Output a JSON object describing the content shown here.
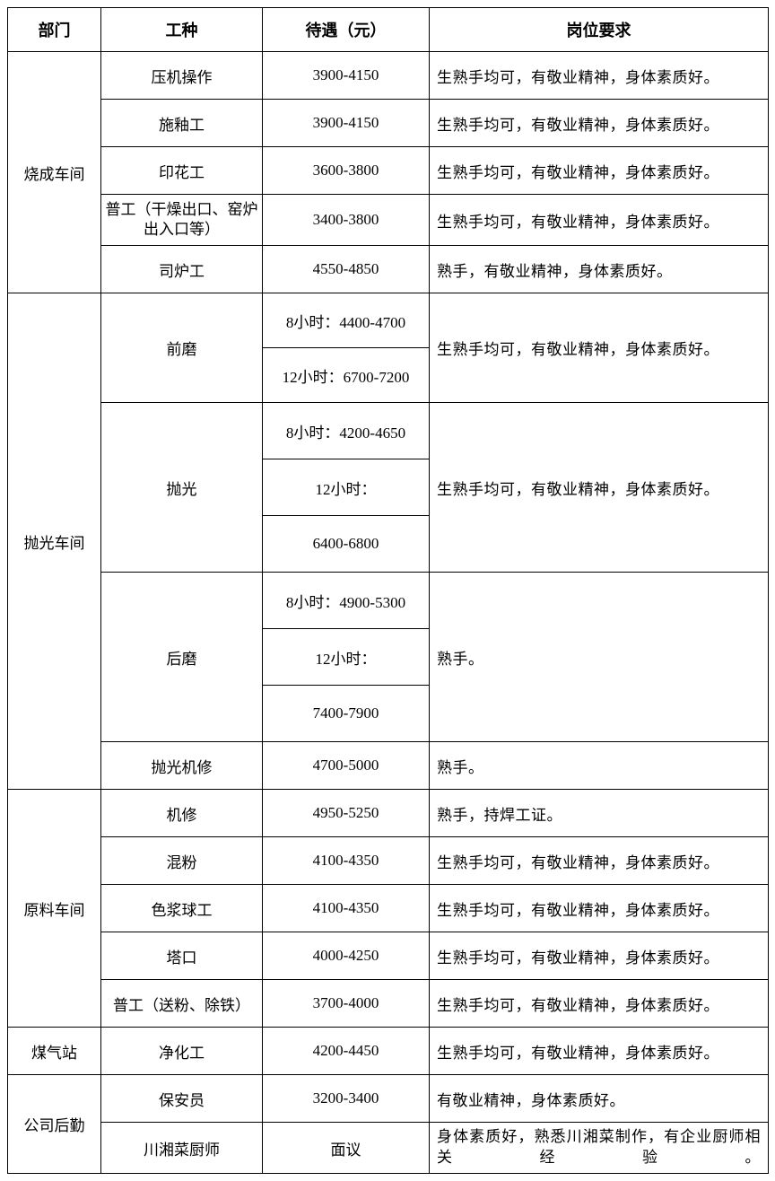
{
  "headers": {
    "dept": "部门",
    "job": "工种",
    "pay": "待遇（元）",
    "req": "岗位要求"
  },
  "req_common": "生熟手均可，有敬业精神，身体素质好。",
  "req_skilled": "熟手，有敬业精神，身体素质好。",
  "req_skilled_only": "熟手。",
  "req_weld": "熟手，持焊工证。",
  "req_guard": "有敬业精神，身体素质好。",
  "req_chef": "身体素质好，熟悉川湘菜制作，有企业厨师相关经验。",
  "depts": {
    "firing": "烧成车间",
    "polish": "抛光车间",
    "raw": "原料车间",
    "gas": "煤气站",
    "logi": "公司后勤"
  },
  "firing": {
    "r1_job": "压机操作",
    "r1_pay": "3900-4150",
    "r2_job": "施釉工",
    "r2_pay": "3900-4150",
    "r3_job": "印花工",
    "r3_pay": "3600-3800",
    "r4_job_l1": "普工（干燥出口、窑炉",
    "r4_job_l2": "出入口等）",
    "r4_pay": "3400-3800",
    "r5_job": "司炉工",
    "r5_pay": "4550-4850"
  },
  "polish": {
    "r1_job": "前磨",
    "r1_pay_a": "8小时：4400-4700",
    "r1_pay_b": "12小时：6700-7200",
    "r2_job": "抛光",
    "r2_pay_a": "8小时：4200-4650",
    "r2_pay_b": "12小时：",
    "r2_pay_c": "6400-6800",
    "r3_job": "后磨",
    "r3_pay_a": "8小时：4900-5300",
    "r3_pay_b": "12小时：",
    "r3_pay_c": "7400-7900",
    "r4_job": "抛光机修",
    "r4_pay": "4700-5000"
  },
  "raw": {
    "r1_job": "机修",
    "r1_pay": "4950-5250",
    "r2_job": "混粉",
    "r2_pay": "4100-4350",
    "r3_job": "色浆球工",
    "r3_pay": "4100-4350",
    "r4_job": "塔口",
    "r4_pay": "4000-4250",
    "r5_job": "普工（送粉、除铁）",
    "r5_pay": "3700-4000"
  },
  "gas": {
    "r1_job": "净化工",
    "r1_pay": "4200-4450"
  },
  "logi": {
    "r1_job": "保安员",
    "r1_pay": "3200-3400",
    "r2_job": "川湘菜厨师",
    "r2_pay": "面议"
  }
}
